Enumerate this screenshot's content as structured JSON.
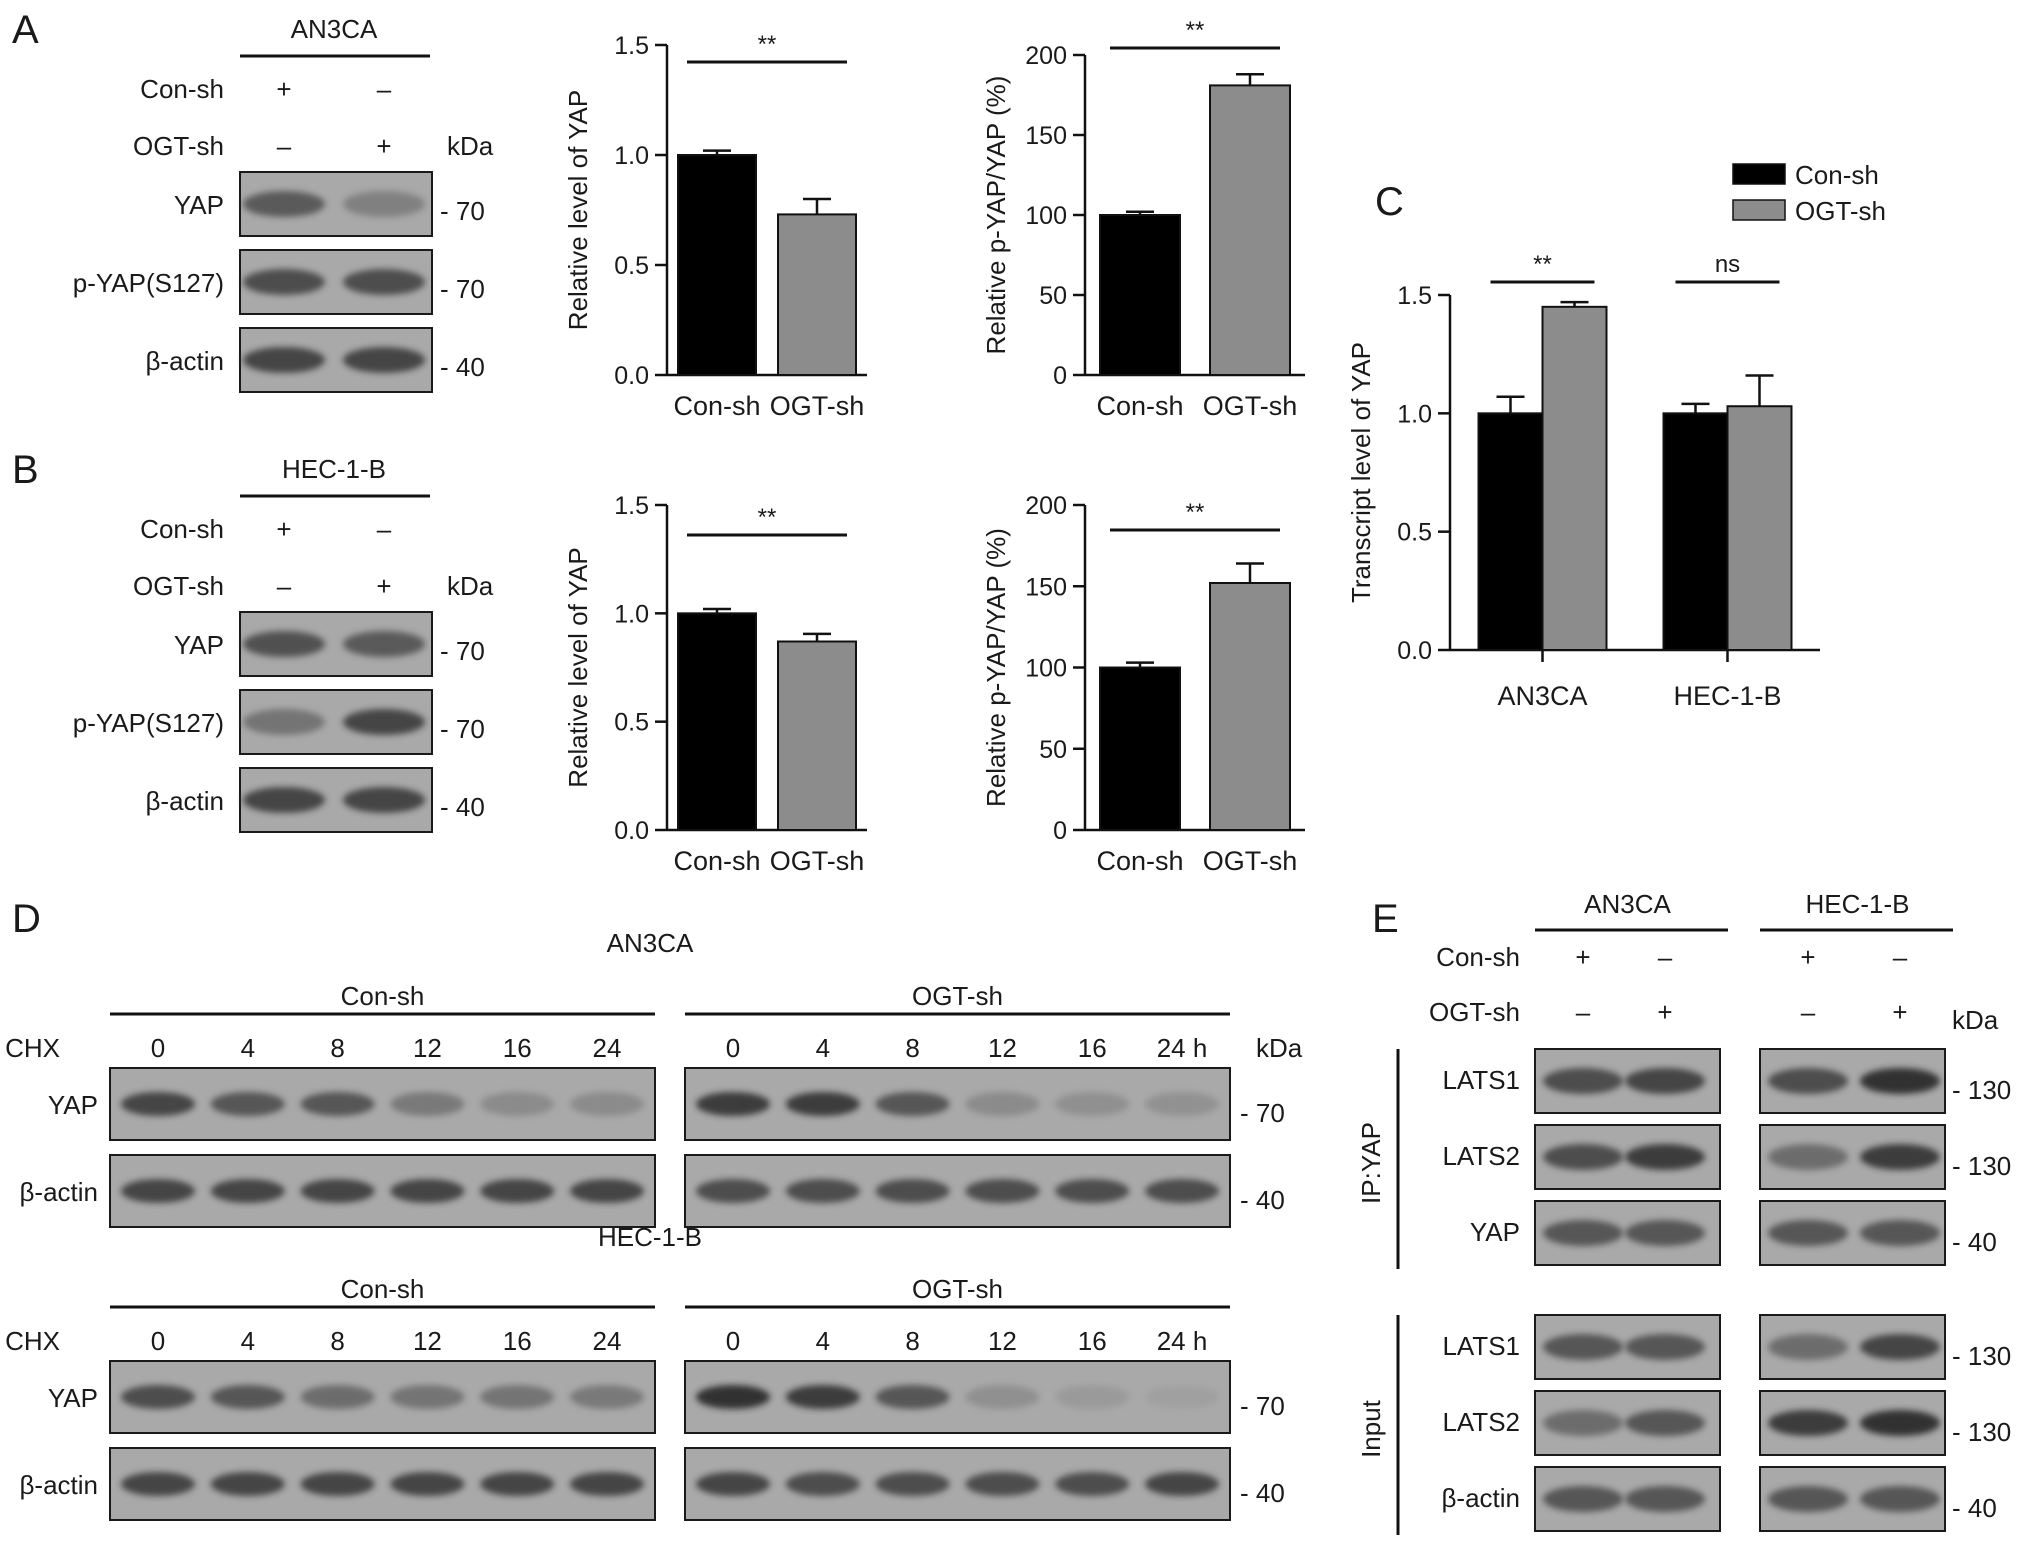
{
  "panels": {
    "A": {
      "letter": "A",
      "cell_line": "AN3CA",
      "rows": [
        {
          "label": "Con-sh",
          "signs": [
            "+",
            "–"
          ]
        },
        {
          "label": "OGT-sh",
          "signs": [
            "–",
            "+"
          ]
        }
      ],
      "kda_label": "kDa",
      "blots": [
        {
          "label": "YAP",
          "marker": "- 70",
          "bands": [
            0.72,
            0.45
          ]
        },
        {
          "label": "p-YAP(S127)",
          "marker": "- 70",
          "bands": [
            0.8,
            0.8
          ]
        },
        {
          "label": "β-actin",
          "marker": "- 40",
          "bands": [
            0.85,
            0.85
          ]
        }
      ]
    },
    "B": {
      "letter": "B",
      "cell_line": "HEC-1-B",
      "rows": [
        {
          "label": "Con-sh",
          "signs": [
            "+",
            "–"
          ]
        },
        {
          "label": "OGT-sh",
          "signs": [
            "–",
            "+"
          ]
        }
      ],
      "kda_label": "kDa",
      "blots": [
        {
          "label": "YAP",
          "marker": "- 70",
          "bands": [
            0.78,
            0.72
          ]
        },
        {
          "label": "p-YAP(S127)",
          "marker": "- 70",
          "bands": [
            0.55,
            0.85
          ]
        },
        {
          "label": "β-actin",
          "marker": "- 40",
          "bands": [
            0.85,
            0.85
          ]
        }
      ]
    },
    "C": {
      "letter": "C",
      "legend": [
        {
          "name": "Con-sh",
          "color": "#000000"
        },
        {
          "name": "OGT-sh",
          "color": "#8c8c8c"
        }
      ]
    },
    "D": {
      "letter": "D",
      "treatment_label": "CHX",
      "kda_label": "kDa",
      "groups": [
        {
          "cell_line": "AN3CA",
          "arms": [
            {
              "name": "Con-sh",
              "times": [
                "0",
                "4",
                "8",
                "12",
                "16",
                "24"
              ]
            },
            {
              "name": "OGT-sh",
              "times": [
                "0",
                "4",
                "8",
                "12",
                "16",
                "24 h"
              ]
            }
          ],
          "blots": [
            {
              "label": "YAP",
              "marker": "- 70",
              "bands": [
                [
                  0.85,
                  0.75,
                  0.75,
                  0.5,
                  0.35,
                  0.35
                ],
                [
                  0.9,
                  0.9,
                  0.75,
                  0.35,
                  0.3,
                  0.28
                ]
              ]
            },
            {
              "label": "β-actin",
              "marker": "- 40",
              "bands": [
                [
                  0.85,
                  0.85,
                  0.85,
                  0.85,
                  0.85,
                  0.85
                ],
                [
                  0.8,
                  0.8,
                  0.8,
                  0.8,
                  0.8,
                  0.8
                ]
              ]
            }
          ]
        },
        {
          "cell_line": "HEC-1-B",
          "arms": [
            {
              "name": "Con-sh",
              "times": [
                "0",
                "4",
                "8",
                "12",
                "16",
                "24"
              ]
            },
            {
              "name": "OGT-sh",
              "times": [
                "0",
                "4",
                "8",
                "12",
                "16",
                "24 h"
              ]
            }
          ],
          "blots": [
            {
              "label": "YAP",
              "marker": "- 70",
              "bands": [
                [
                  0.8,
                  0.75,
                  0.6,
                  0.55,
                  0.55,
                  0.5
                ],
                [
                  0.95,
                  0.9,
                  0.75,
                  0.3,
                  0.18,
                  0.1
                ]
              ]
            },
            {
              "label": "β-actin",
              "marker": "- 40",
              "bands": [
                [
                  0.85,
                  0.85,
                  0.85,
                  0.85,
                  0.85,
                  0.85
                ],
                [
                  0.85,
                  0.8,
                  0.8,
                  0.8,
                  0.8,
                  0.85
                ]
              ]
            }
          ]
        }
      ]
    },
    "E": {
      "letter": "E",
      "cell_lines": [
        "AN3CA",
        "HEC-1-B"
      ],
      "rows": [
        {
          "label": "Con-sh",
          "signs": [
            "+",
            "–",
            "+",
            "–"
          ]
        },
        {
          "label": "OGT-sh",
          "signs": [
            "–",
            "+",
            "–",
            "+"
          ]
        }
      ],
      "kda_label": "kDa",
      "sections": [
        {
          "label": "IP:YAP",
          "blots": [
            {
              "label": "LATS1",
              "marker": "- 130",
              "bands": [
                [
                  0.8,
                  0.85
                ],
                [
                  0.8,
                  0.95
                ]
              ]
            },
            {
              "label": "LATS2",
              "marker": "- 130",
              "bands": [
                [
                  0.8,
                  0.9
                ],
                [
                  0.6,
                  0.9
                ]
              ]
            },
            {
              "label": "YAP",
              "marker": "- 40",
              "bands": [
                [
                  0.75,
                  0.75
                ],
                [
                  0.75,
                  0.75
                ]
              ]
            }
          ]
        },
        {
          "label": "Input",
          "blots": [
            {
              "label": "LATS1",
              "marker": "- 130",
              "bands": [
                [
                  0.75,
                  0.75
                ],
                [
                  0.6,
                  0.85
                ]
              ]
            },
            {
              "label": "LATS2",
              "marker": "- 130",
              "bands": [
                [
                  0.6,
                  0.75
                ],
                [
                  0.9,
                  0.95
                ]
              ]
            },
            {
              "label": "β-actin",
              "marker": "- 40",
              "bands": [
                [
                  0.75,
                  0.75
                ],
                [
                  0.75,
                  0.75
                ]
              ]
            }
          ]
        }
      ]
    }
  },
  "chart_data": [
    {
      "id": "A-yap",
      "type": "bar",
      "categories": [
        "Con-sh",
        "OGT-sh"
      ],
      "values": [
        1.0,
        0.73
      ],
      "errors": [
        0.02,
        0.07
      ],
      "colors": [
        "#000000",
        "#8c8c8c"
      ],
      "ylabel": "Relative level of YAP",
      "ylim": [
        0,
        1.5
      ],
      "yticks": [
        "0.0",
        "0.5",
        "1.0",
        "1.5"
      ],
      "significance": "**"
    },
    {
      "id": "A-pyap",
      "type": "bar",
      "categories": [
        "Con-sh",
        "OGT-sh"
      ],
      "values": [
        100,
        181
      ],
      "errors": [
        2,
        7
      ],
      "colors": [
        "#000000",
        "#8c8c8c"
      ],
      "ylabel": "Relative p-YAP/YAP (%)",
      "ylim": [
        0,
        200
      ],
      "yticks": [
        "0",
        "50",
        "100",
        "150",
        "200"
      ],
      "significance": "**"
    },
    {
      "id": "B-yap",
      "type": "bar",
      "categories": [
        "Con-sh",
        "OGT-sh"
      ],
      "values": [
        1.0,
        0.87
      ],
      "errors": [
        0.02,
        0.035
      ],
      "colors": [
        "#000000",
        "#8c8c8c"
      ],
      "ylabel": "Relative level of YAP",
      "ylim": [
        0,
        1.5
      ],
      "yticks": [
        "0.0",
        "0.5",
        "1.0",
        "1.5"
      ],
      "significance": "**"
    },
    {
      "id": "B-pyap",
      "type": "bar",
      "categories": [
        "Con-sh",
        "OGT-sh"
      ],
      "values": [
        100,
        152
      ],
      "errors": [
        3,
        12
      ],
      "colors": [
        "#000000",
        "#8c8c8c"
      ],
      "ylabel": "Relative p-YAP/YAP (%)",
      "ylim": [
        0,
        200
      ],
      "yticks": [
        "0",
        "50",
        "100",
        "150",
        "200"
      ],
      "significance": "**"
    },
    {
      "id": "C-transcript",
      "type": "bar",
      "categories": [
        "AN3CA",
        "HEC-1-B"
      ],
      "series": [
        {
          "name": "Con-sh",
          "values": [
            1.0,
            1.0
          ],
          "errors": [
            0.07,
            0.04
          ]
        },
        {
          "name": "OGT-sh",
          "values": [
            1.45,
            1.03
          ],
          "errors": [
            0.02,
            0.13
          ]
        }
      ],
      "colors": [
        "#000000",
        "#8c8c8c"
      ],
      "ylabel": "Transcript level of YAP",
      "ylim": [
        0,
        1.5
      ],
      "yticks": [
        "0.0",
        "0.5",
        "1.0",
        "1.5"
      ],
      "significance": [
        "**",
        "ns"
      ],
      "legend_position": "top-right"
    }
  ]
}
